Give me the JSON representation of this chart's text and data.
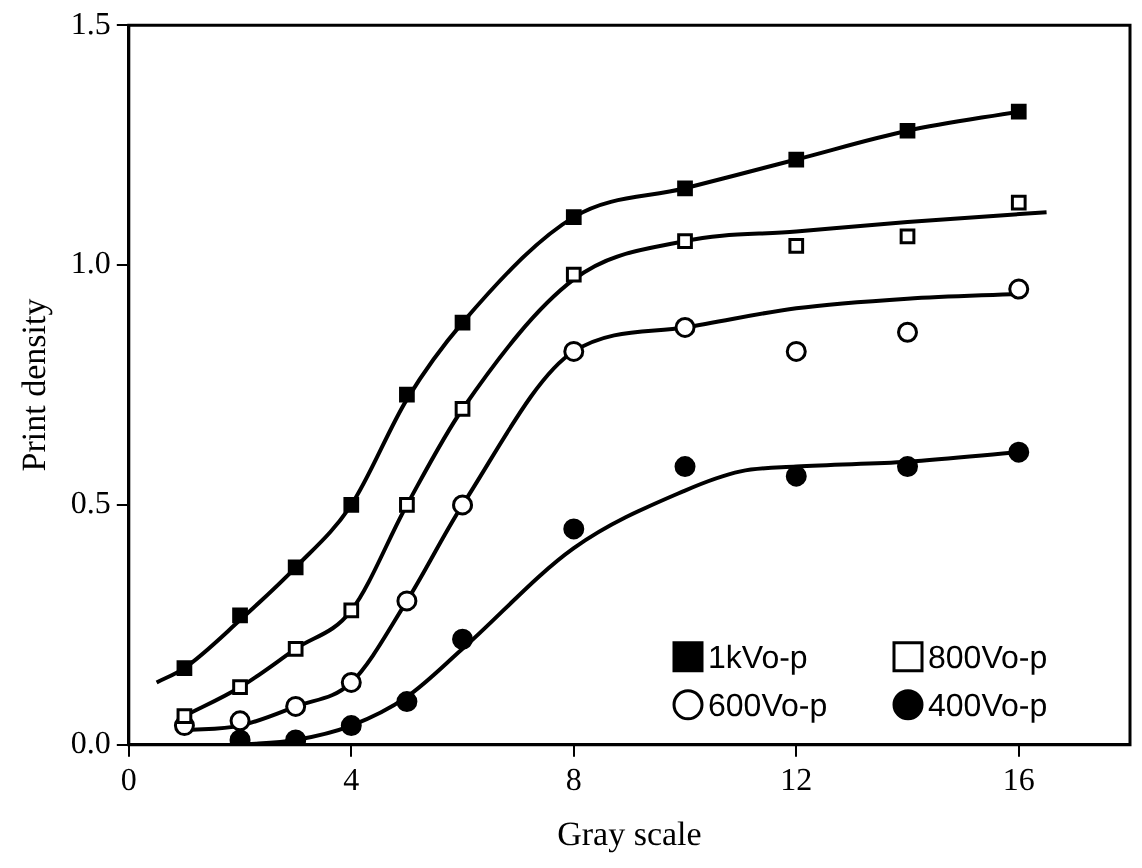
{
  "chart_data": {
    "type": "scatter",
    "xlabel": "Gray scale",
    "ylabel": "Print density",
    "xlim": [
      0,
      18
    ],
    "xticks": [
      0,
      4,
      8,
      12,
      16
    ],
    "ylim": [
      0,
      1.5
    ],
    "yticks": [
      {
        "value": 0,
        "label": "0.0"
      },
      {
        "value": 0.5,
        "label": "0.5"
      },
      {
        "value": 1,
        "label": "1.0"
      },
      {
        "value": 1.5,
        "label": "1.5"
      }
    ],
    "grid": false,
    "legend": "bottom right",
    "series": [
      {
        "name": "1kVo-p",
        "type": "scatter",
        "marker": "square",
        "color": "#000000",
        "x": [
          1,
          2,
          3,
          4,
          5,
          6,
          8,
          10,
          12,
          14,
          16
        ],
        "values": [
          0.16,
          0.27,
          0.37,
          0.5,
          0.73,
          0.88,
          1.1,
          1.16,
          1.22,
          1.28,
          1.32
        ]
      },
      {
        "name": "800Vo-p",
        "type": "scatter",
        "marker": "square",
        "color": "#ffffff",
        "x": [
          1,
          2,
          3,
          4,
          5,
          6,
          8,
          10,
          12,
          14,
          16
        ],
        "values": [
          0.06,
          0.12,
          0.2,
          0.28,
          0.5,
          0.7,
          0.98,
          1.05,
          1.04,
          1.06,
          1.13
        ]
      },
      {
        "name": "600Vo-p",
        "type": "scatter",
        "marker": "circle",
        "color": "#ffffff",
        "x": [
          1,
          2,
          3,
          4,
          5,
          6,
          8,
          10,
          12,
          14,
          16
        ],
        "values": [
          0.04,
          0.05,
          0.08,
          0.13,
          0.3,
          0.5,
          0.82,
          0.87,
          0.82,
          0.86,
          0.95
        ]
      },
      {
        "name": "400Vo-p",
        "type": "scatter",
        "marker": "circle",
        "color": "#000000",
        "x": [
          2,
          3,
          4,
          5,
          6,
          8,
          10,
          12,
          14,
          16
        ],
        "values": [
          0.01,
          0.01,
          0.04,
          0.09,
          0.22,
          0.45,
          0.58,
          0.56,
          0.58,
          0.61
        ]
      },
      {
        "type": "line",
        "marker": "none",
        "color": "#000000",
        "x": [
          0.5,
          1,
          2,
          3,
          4,
          5,
          6,
          8,
          10,
          12,
          14,
          16
        ],
        "values": [
          0.13,
          0.16,
          0.26,
          0.37,
          0.5,
          0.72,
          0.88,
          1.1,
          1.16,
          1.22,
          1.28,
          1.32
        ]
      },
      {
        "type": "line",
        "marker": "none",
        "color": "#000000",
        "x": [
          1,
          2,
          3,
          4,
          5,
          6,
          8,
          10,
          12,
          14,
          16.5
        ],
        "values": [
          0.06,
          0.12,
          0.2,
          0.28,
          0.5,
          0.7,
          0.97,
          1.05,
          1.07,
          1.09,
          1.11
        ]
      },
      {
        "type": "line",
        "marker": "none",
        "color": "#000000",
        "x": [
          1,
          2,
          3,
          4,
          5,
          6,
          8,
          10,
          12,
          14,
          16
        ],
        "values": [
          0.03,
          0.04,
          0.08,
          0.13,
          0.3,
          0.5,
          0.82,
          0.87,
          0.91,
          0.93,
          0.94
        ]
      },
      {
        "type": "line",
        "marker": "none",
        "color": "#000000",
        "x": [
          2,
          3,
          4,
          5,
          6,
          8,
          10,
          11,
          12,
          14,
          16
        ],
        "values": [
          0.0,
          0.01,
          0.04,
          0.1,
          0.2,
          0.41,
          0.53,
          0.57,
          0.58,
          0.59,
          0.61
        ]
      }
    ]
  }
}
